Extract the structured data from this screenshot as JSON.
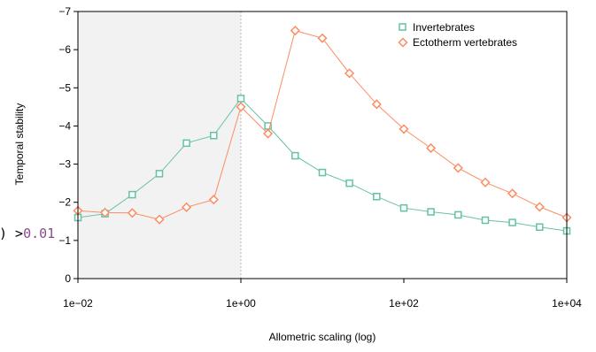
{
  "chart_data": {
    "type": "line",
    "xlabel": "Allometric scaling (log)",
    "ylabel": "Temporal stability",
    "x_scale": "log10",
    "xlim": [
      0.01,
      10000
    ],
    "ylim": [
      0,
      -7
    ],
    "x_ticks": [
      0.01,
      1,
      100,
      10000
    ],
    "x_tick_labels": [
      "1e−02",
      "1e+00",
      "1e+02",
      "1e+04"
    ],
    "y_ticks": [
      0,
      -1,
      -2,
      -3,
      -4,
      -5,
      -6,
      -7
    ],
    "y_tick_labels": [
      "0",
      "−1",
      "−2",
      "−3",
      "−4",
      "−5",
      "−6",
      "−7"
    ],
    "shaded_region": {
      "from": 0.01,
      "to": 1,
      "color": "#f2f2f2"
    },
    "reference_line": {
      "x": 1,
      "style": "dotted",
      "color": "#bbbbbb"
    },
    "legend": {
      "position": "top-right"
    },
    "series": [
      {
        "name": "Invertebrates",
        "color": "#66c2a5",
        "marker": "square",
        "x": [
          0.01,
          0.0215,
          0.0464,
          0.1,
          0.215,
          0.464,
          1,
          2.15,
          4.64,
          10,
          21.5,
          46.4,
          100,
          215,
          464,
          1000,
          2150,
          4640,
          10000
        ],
        "y": [
          -1.6,
          -1.7,
          -2.2,
          -2.75,
          -3.55,
          -3.75,
          -4.72,
          -4.0,
          -3.22,
          -2.78,
          -2.5,
          -2.15,
          -1.85,
          -1.75,
          -1.67,
          -1.53,
          -1.47,
          -1.35,
          -1.25
        ]
      },
      {
        "name": "Ectotherm vertebrates",
        "color": "#fc8d62",
        "marker": "diamond",
        "x": [
          0.01,
          0.0215,
          0.0464,
          0.1,
          0.215,
          0.464,
          1,
          2.15,
          4.64,
          10,
          21.5,
          46.4,
          100,
          215,
          464,
          1000,
          2150,
          4640,
          10000
        ],
        "y": [
          -1.78,
          -1.73,
          -1.72,
          -1.55,
          -1.87,
          -2.07,
          -4.5,
          -3.8,
          -6.5,
          -6.3,
          -5.38,
          -4.57,
          -3.92,
          -3.42,
          -2.9,
          -2.52,
          -2.23,
          -1.88,
          -1.6
        ]
      }
    ]
  },
  "overlay": {
    "prefix": ") >",
    "value": "0.01"
  },
  "colors": {
    "overlay_prefix": "#000000",
    "overlay_value": "#8a4a8a"
  }
}
